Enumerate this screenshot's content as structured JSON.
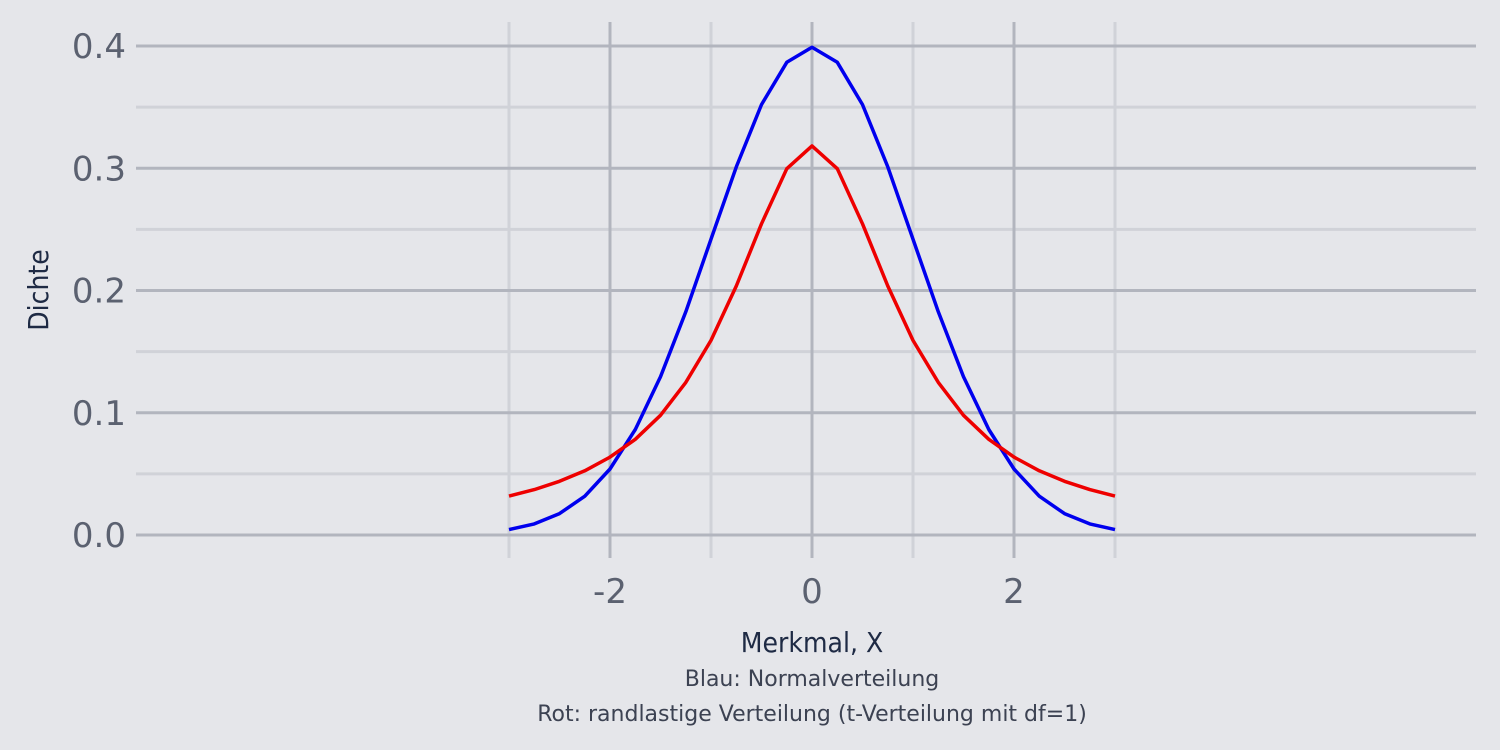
{
  "chart_data": {
    "type": "line",
    "xlabel": "Merkmal, X",
    "ylabel": "Dichte",
    "caption_lines": [
      "Blau: Normalverteilung",
      "Rot: randlastige Verteilung (t-Verteilung mit df=1)"
    ],
    "xlim": [
      -3.0,
      3.0
    ],
    "ylim": [
      0.0,
      0.4
    ],
    "x_ticks": [
      -2,
      0,
      2
    ],
    "x_tick_labels": [
      "-2",
      "0",
      "2"
    ],
    "y_ticks": [
      0.0,
      0.1,
      0.2,
      0.3,
      0.4
    ],
    "y_tick_labels": [
      "0.0",
      "0.1",
      "0.2",
      "0.3",
      "0.4"
    ],
    "grid": true,
    "x": [
      -3.0,
      -2.75,
      -2.5,
      -2.25,
      -2.0,
      -1.75,
      -1.5,
      -1.25,
      -1.0,
      -0.75,
      -0.5,
      -0.25,
      0.0,
      0.25,
      0.5,
      0.75,
      1.0,
      1.25,
      1.5,
      1.75,
      2.0,
      2.25,
      2.5,
      2.75,
      3.0
    ],
    "series": [
      {
        "color": "#0000ee",
        "values": [
          0.0044,
          0.0091,
          0.0175,
          0.0317,
          0.054,
          0.0863,
          0.1295,
          0.1826,
          0.242,
          0.3011,
          0.3521,
          0.3867,
          0.3989,
          0.3867,
          0.3521,
          0.3011,
          0.242,
          0.1826,
          0.1295,
          0.0863,
          0.054,
          0.0317,
          0.0175,
          0.0091,
          0.0044
        ]
      },
      {
        "color": "#ee0000",
        "values": [
          0.0318,
          0.0371,
          0.0439,
          0.0525,
          0.0637,
          0.0783,
          0.0979,
          0.1248,
          0.1592,
          0.2037,
          0.2546,
          0.2996,
          0.3183,
          0.2996,
          0.2546,
          0.2037,
          0.1592,
          0.1248,
          0.0979,
          0.0783,
          0.0637,
          0.0525,
          0.0439,
          0.0371,
          0.0318
        ]
      }
    ]
  }
}
